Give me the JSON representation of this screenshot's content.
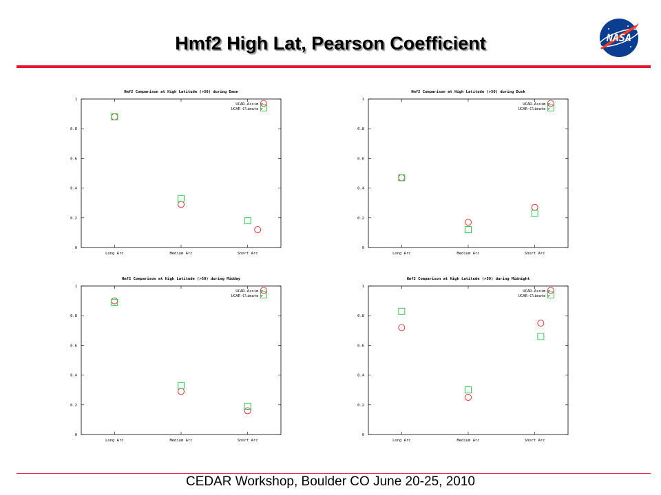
{
  "slide": {
    "title": "Hmf2 High Lat, Pearson Coefficient",
    "footer": "CEDAR Workshop, Boulder CO June 20-25, 2010",
    "logo_text": "NASA",
    "accent_color": "#e8142d"
  },
  "chart_data": [
    {
      "type": "scatter",
      "title": "Hmf2 Comparison at High Latitude (>50) during Dawn",
      "categories": [
        "Long Arc",
        "Medium Arc",
        "Short Arc"
      ],
      "ylim": [
        0,
        1
      ],
      "yticks": [
        "0",
        "0.2",
        "0.4",
        "0.6",
        "0.8",
        "1"
      ],
      "grid": false,
      "legend_position": "top-right",
      "series": [
        {
          "name": "UCAR-Assim r",
          "marker": "circle",
          "color": "#e02020",
          "values": [
            0.88,
            0.29,
            0.12
          ],
          "x_offset": [
            0,
            0,
            0.05
          ]
        },
        {
          "name": "UCAR-Climate r",
          "marker": "square",
          "color": "#20c040",
          "values": [
            0.88,
            0.33,
            0.18
          ],
          "x_offset": [
            0,
            0,
            0
          ]
        }
      ],
      "extra_points": [
        {
          "series": 0,
          "category": 2,
          "x_offset": 0.08,
          "value": 0.97
        },
        {
          "series": 1,
          "category": 2,
          "x_offset": 0.08,
          "value": 0.94
        }
      ]
    },
    {
      "type": "scatter",
      "title": "Hmf2 Comparison at High Latitude (>50) during Dusk",
      "categories": [
        "Long Arc",
        "Medium Arc",
        "Short Arc"
      ],
      "ylim": [
        0,
        1
      ],
      "yticks": [
        "0",
        "0.2",
        "0.4",
        "0.6",
        "0.8",
        "1"
      ],
      "grid": false,
      "legend_position": "top-right",
      "series": [
        {
          "name": "UCAR-Assim r",
          "marker": "circle",
          "color": "#e02020",
          "values": [
            0.47,
            0.17,
            0.27
          ],
          "x_offset": [
            0,
            0,
            0
          ]
        },
        {
          "name": "UCAR-Climate r",
          "marker": "square",
          "color": "#20c040",
          "values": [
            0.47,
            0.12,
            0.23
          ],
          "x_offset": [
            0,
            0,
            0
          ]
        }
      ],
      "extra_points": [
        {
          "series": 0,
          "category": 2,
          "x_offset": 0.08,
          "value": 0.97
        },
        {
          "series": 1,
          "category": 2,
          "x_offset": 0.08,
          "value": 0.94
        }
      ]
    },
    {
      "type": "scatter",
      "title": "Hmf2 Comparison at High Latitude (>50) during Midday",
      "categories": [
        "Long Arc",
        "Medium Arc",
        "Short Arc"
      ],
      "ylim": [
        0,
        1
      ],
      "yticks": [
        "0",
        "0.2",
        "0.4",
        "0.6",
        "0.8",
        "1"
      ],
      "grid": false,
      "legend_position": "top-right",
      "series": [
        {
          "name": "UCAR-Assim r",
          "marker": "circle",
          "color": "#e02020",
          "values": [
            0.9,
            0.29,
            0.16
          ],
          "x_offset": [
            0,
            0,
            0
          ]
        },
        {
          "name": "UCAR-Climate r",
          "marker": "square",
          "color": "#20c040",
          "values": [
            0.89,
            0.33,
            0.19
          ],
          "x_offset": [
            0,
            0,
            0
          ]
        }
      ],
      "extra_points": [
        {
          "series": 0,
          "category": 2,
          "x_offset": 0.08,
          "value": 0.97
        },
        {
          "series": 1,
          "category": 2,
          "x_offset": 0.08,
          "value": 0.94
        }
      ]
    },
    {
      "type": "scatter",
      "title": "Hmf2 Comparison at High Latitude (>50) during Midnight",
      "categories": [
        "Long Arc",
        "Medium Arc",
        "Short Arc"
      ],
      "ylim": [
        0,
        1
      ],
      "yticks": [
        "0",
        "0.2",
        "0.4",
        "0.6",
        "0.8",
        "1"
      ],
      "grid": false,
      "legend_position": "top-right",
      "series": [
        {
          "name": "UCAR-Assim r",
          "marker": "circle",
          "color": "#e02020",
          "values": [
            0.72,
            0.25,
            0.75
          ],
          "x_offset": [
            0,
            0,
            0.03
          ]
        },
        {
          "name": "UCAR-Climate r",
          "marker": "square",
          "color": "#20c040",
          "values": [
            0.83,
            0.3,
            0.66
          ],
          "x_offset": [
            0,
            0,
            0.03
          ]
        }
      ],
      "extra_points": [
        {
          "series": 0,
          "category": 2,
          "x_offset": 0.08,
          "value": 0.97
        },
        {
          "series": 1,
          "category": 2,
          "x_offset": 0.08,
          "value": 0.94
        }
      ]
    }
  ]
}
